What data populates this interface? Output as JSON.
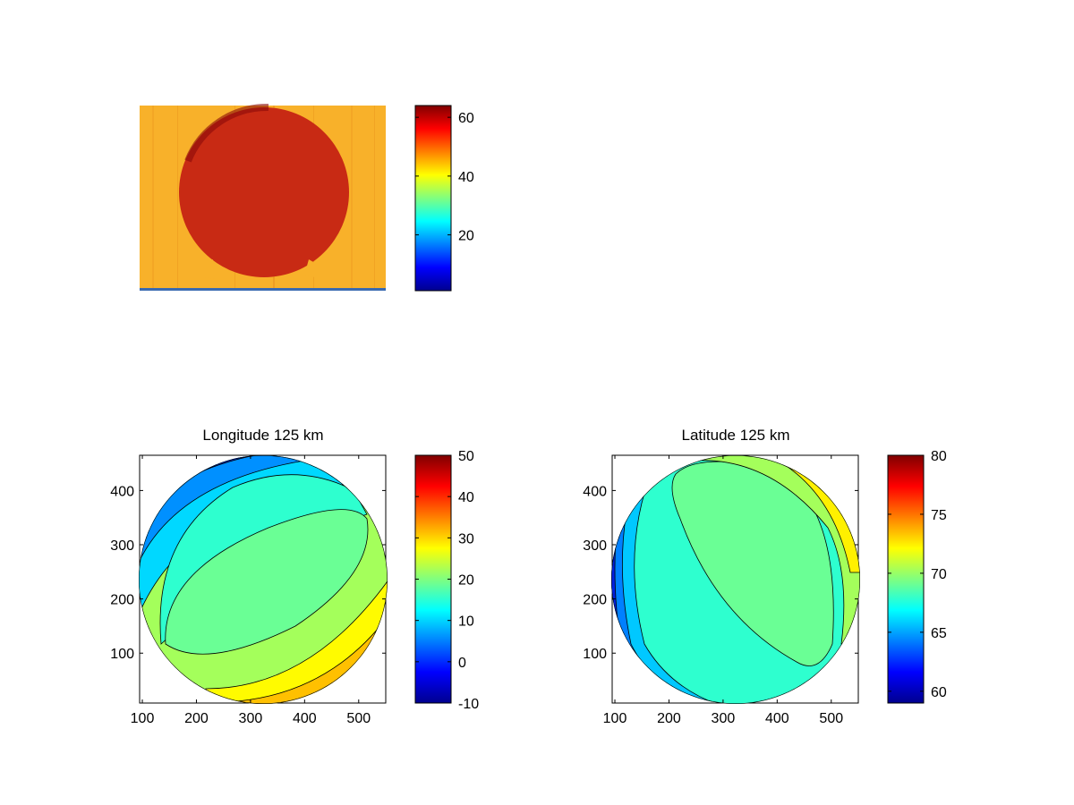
{
  "colormap_stops": [
    "#00008f",
    "#0000ff",
    "#00ffff",
    "#ffff00",
    "#ff0000",
    "#800000"
  ],
  "chart_data": [
    {
      "type": "heatmap",
      "title": "",
      "description_values": "image panel",
      "colorbar": {
        "range": [
          1,
          64
        ],
        "ticks": [
          20,
          40,
          60
        ]
      },
      "image": {
        "background_value": 46,
        "disc_value": 61,
        "bottom_line_value": 4
      }
    },
    {
      "type": "heatmap",
      "title": "Longitude 125 km",
      "xlim": [
        95,
        550
      ],
      "ylim": [
        8,
        465
      ],
      "xticks": [
        100,
        200,
        300,
        400,
        500
      ],
      "yticks": [
        100,
        200,
        300,
        400
      ],
      "sphere": {
        "cx": 320,
        "cy": 238,
        "r": 228
      },
      "colorbar": {
        "range": [
          -10,
          50
        ],
        "ticks": [
          -10,
          0,
          10,
          20,
          30,
          40,
          50
        ]
      },
      "bands": [
        {
          "value": 20,
          "color": "#6aff95"
        },
        {
          "value": 15,
          "color": "#2effcf"
        },
        {
          "value": 25,
          "color": "#a4ff5b"
        },
        {
          "value": 30,
          "color": "#fffb00"
        },
        {
          "value": 10,
          "color": "#00d8ff"
        }
      ]
    },
    {
      "type": "heatmap",
      "title": "Latitude 125 km",
      "xlim": [
        95,
        550
      ],
      "ylim": [
        8,
        465
      ],
      "xticks": [
        100,
        200,
        300,
        400,
        500
      ],
      "yticks": [
        100,
        200,
        300,
        400
      ],
      "sphere": {
        "cx": 320,
        "cy": 238,
        "r": 228
      },
      "colorbar": {
        "range": [
          59,
          80
        ],
        "ticks": [
          60,
          65,
          70,
          75,
          80
        ]
      },
      "bands": [
        {
          "value": 69,
          "color": "#6aff95"
        },
        {
          "value": 68,
          "color": "#2effcf"
        },
        {
          "value": 70,
          "color": "#a4ff5b"
        },
        {
          "value": 67,
          "color": "#00e8ff"
        },
        {
          "value": 71,
          "color": "#e2ff1e"
        }
      ]
    }
  ]
}
